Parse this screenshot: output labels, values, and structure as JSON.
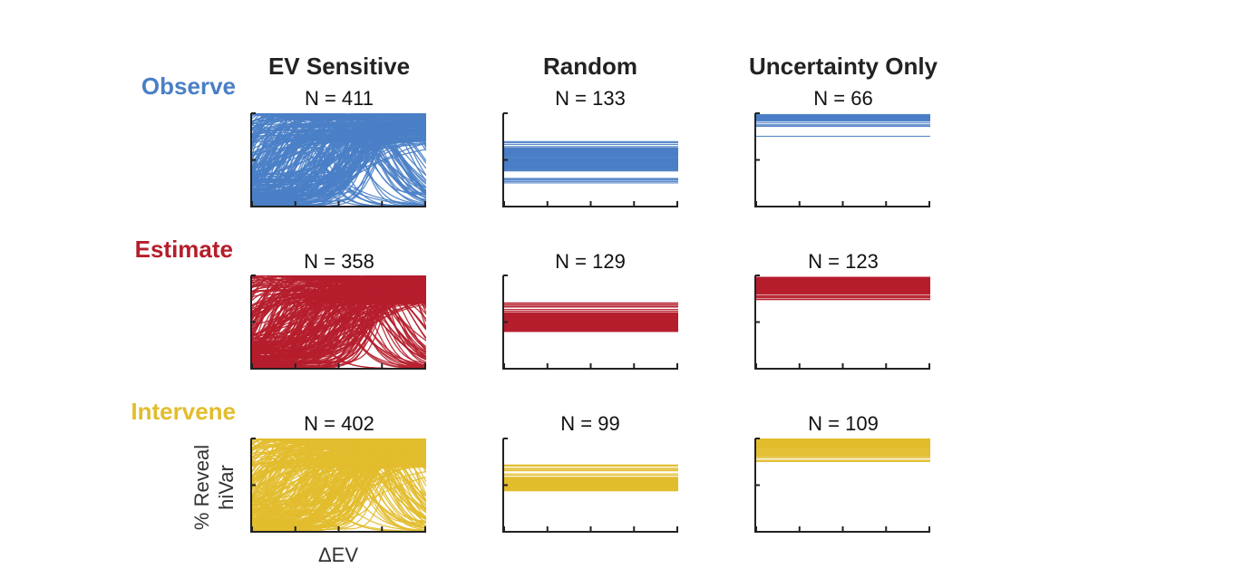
{
  "columns": [
    "EV Sensitive",
    "Random",
    "Uncertainty Only"
  ],
  "rows": [
    {
      "name": "Observe",
      "color": "#4a7fc6"
    },
    {
      "name": "Estimate",
      "color": "#b61e2c"
    },
    {
      "name": "Intervene",
      "color": "#e2bd2d"
    }
  ],
  "axis_labels": {
    "y_line1": "% Reveal",
    "y_line2": "hiVar",
    "x": "ΔEV"
  },
  "chart_data": [
    {
      "type": "line",
      "row": "Observe",
      "column": "EV Sensitive",
      "count_label": "N = 411",
      "n": 411,
      "ylim": [
        0,
        1
      ],
      "xlim": [
        0,
        1
      ],
      "shape": "sigmoid-mixed"
    },
    {
      "type": "line",
      "row": "Observe",
      "column": "Random",
      "count_label": "N = 133",
      "n": 133,
      "ylim": [
        0,
        1
      ],
      "xlim": [
        0,
        1
      ],
      "shape": "flat",
      "band": [
        0.25,
        0.7
      ],
      "core": [
        0.42,
        0.62
      ]
    },
    {
      "type": "line",
      "row": "Observe",
      "column": "Uncertainty Only",
      "count_label": "N = 66",
      "n": 66,
      "ylim": [
        0,
        1
      ],
      "xlim": [
        0,
        1
      ],
      "shape": "flat",
      "band": [
        0.74,
        1.0
      ],
      "core": [
        0.92,
        0.98
      ]
    },
    {
      "type": "line",
      "row": "Estimate",
      "column": "EV Sensitive",
      "count_label": "N = 358",
      "n": 358,
      "ylim": [
        0,
        1
      ],
      "xlim": [
        0,
        1
      ],
      "shape": "sigmoid-mixed"
    },
    {
      "type": "line",
      "row": "Estimate",
      "column": "Random",
      "count_label": "N = 129",
      "n": 129,
      "ylim": [
        0,
        1
      ],
      "xlim": [
        0,
        1
      ],
      "shape": "flat",
      "band": [
        0.4,
        0.72
      ],
      "core": [
        0.4,
        0.6
      ]
    },
    {
      "type": "line",
      "row": "Estimate",
      "column": "Uncertainty Only",
      "count_label": "N = 123",
      "n": 123,
      "ylim": [
        0,
        1
      ],
      "xlim": [
        0,
        1
      ],
      "shape": "flat",
      "band": [
        0.73,
        1.0
      ],
      "core": [
        0.8,
        0.98
      ]
    },
    {
      "type": "line",
      "row": "Intervene",
      "column": "EV Sensitive",
      "count_label": "N = 402",
      "n": 402,
      "ylim": [
        0,
        1
      ],
      "xlim": [
        0,
        1
      ],
      "shape": "sigmoid-mixed"
    },
    {
      "type": "line",
      "row": "Intervene",
      "column": "Random",
      "count_label": "N = 99",
      "n": 99,
      "ylim": [
        0,
        1
      ],
      "xlim": [
        0,
        1
      ],
      "shape": "flat",
      "band": [
        0.44,
        0.72
      ],
      "core": [
        0.44,
        0.58
      ]
    },
    {
      "type": "line",
      "row": "Intervene",
      "column": "Uncertainty Only",
      "count_label": "N = 109",
      "n": 109,
      "ylim": [
        0,
        1
      ],
      "xlim": [
        0,
        1
      ],
      "shape": "flat",
      "band": [
        0.74,
        1.0
      ],
      "core": [
        0.9,
        1.0
      ]
    }
  ]
}
